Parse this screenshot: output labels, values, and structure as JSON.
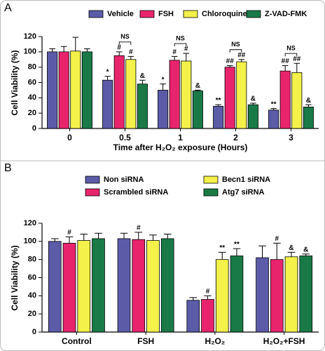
{
  "chart_data": [
    {
      "type": "bar",
      "panel_label": "A",
      "categories": [
        "0",
        "0.5",
        "1",
        "2",
        "3"
      ],
      "x_label": "Time after H₂O₂ exposure (Hours)",
      "y_label": "Cell Viability (%)",
      "ylim": [
        0,
        120
      ],
      "yticks": [
        0,
        20,
        40,
        60,
        80,
        100,
        120
      ],
      "series": [
        {
          "name": "Vehicle",
          "color": "#5b5ba8",
          "values": [
            100,
            63,
            50,
            29,
            24
          ],
          "errors": [
            4,
            5,
            8,
            2,
            2
          ],
          "annotations": [
            null,
            "*",
            "*",
            "**",
            "**"
          ]
        },
        {
          "name": "FSH",
          "color": "#e8246c",
          "values": [
            100,
            95,
            89,
            80,
            75
          ],
          "errors": [
            7,
            5,
            5,
            2,
            7
          ],
          "annotations": [
            null,
            "#",
            "#",
            "##",
            "##"
          ]
        },
        {
          "name": "Chloroquine",
          "color": "#f3f14a",
          "values": [
            101,
            90,
            88,
            87,
            73
          ],
          "errors": [
            18,
            4,
            10,
            3,
            12
          ],
          "annotations": [
            null,
            "#",
            "#",
            "##",
            "##"
          ]
        },
        {
          "name": "Z-VAD-FMK",
          "color": "#197a48",
          "values": [
            100,
            58,
            49,
            31,
            28
          ],
          "errors": [
            4,
            5,
            1,
            2,
            3
          ],
          "annotations": [
            null,
            "&",
            "&",
            "&",
            "&"
          ]
        }
      ],
      "ns_labels": [
        null,
        "NS",
        "NS",
        "NS",
        "NS"
      ]
    },
    {
      "type": "bar",
      "panel_label": "B",
      "categories": [
        "Control",
        "FSH",
        "H₂O₂",
        "H₂O₂+FSH"
      ],
      "y_label": "Cell Viability (%)",
      "ylim": [
        0,
        120
      ],
      "yticks": [
        0,
        20,
        40,
        60,
        80,
        100,
        120
      ],
      "series": [
        {
          "name": "Non siRNA",
          "color": "#5b5ba8",
          "values": [
            100,
            103,
            35,
            82
          ],
          "errors": [
            3,
            6,
            3,
            13
          ],
          "annotations": [
            null,
            null,
            null,
            null
          ]
        },
        {
          "name": "Scrambled siRNA",
          "color": "#e8246c",
          "values": [
            98,
            102,
            36,
            80
          ],
          "errors": [
            7,
            8,
            4,
            18
          ],
          "annotations": [
            "#",
            "#",
            "#",
            "#"
          ]
        },
        {
          "name": "Becn1 siRNA",
          "color": "#f3f14a",
          "values": [
            101,
            101,
            80,
            83
          ],
          "errors": [
            7,
            6,
            8,
            5
          ],
          "annotations": [
            null,
            null,
            "**",
            "&"
          ]
        },
        {
          "name": "Atg7 siRNA",
          "color": "#197a48",
          "values": [
            103,
            103,
            84,
            84
          ],
          "errors": [
            6,
            5,
            8,
            2
          ],
          "annotations": [
            null,
            null,
            "**",
            "&"
          ]
        }
      ]
    }
  ]
}
